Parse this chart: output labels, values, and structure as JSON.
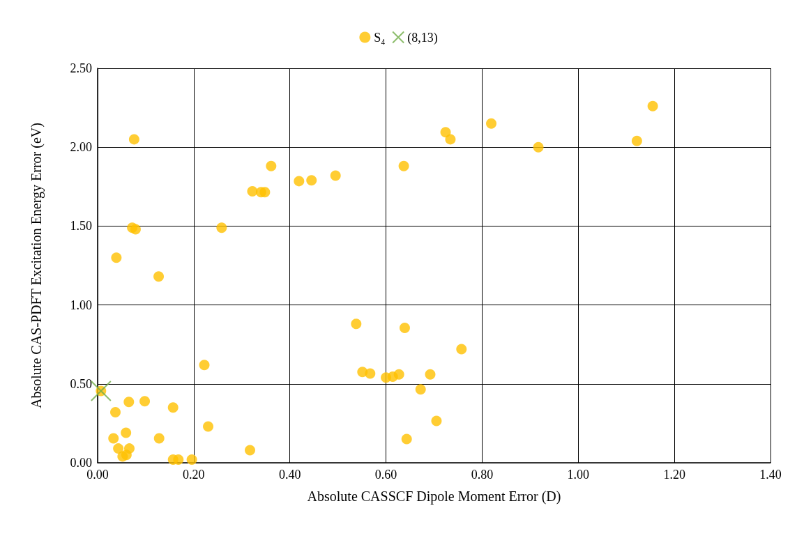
{
  "chart_data": {
    "type": "scatter",
    "xlabel": "Absolute CASSCF Dipole Moment Error (D)",
    "ylabel": "Absolute CAS-PDFT Excitation Energy Error (eV)",
    "xlim": [
      0,
      1.4
    ],
    "xticks": [
      {
        "value": 0,
        "label": "0.00"
      },
      {
        "value": 0.2,
        "label": "0.20"
      },
      {
        "value": 0.4,
        "label": "0.40"
      },
      {
        "value": 0.6,
        "label": "0.60"
      },
      {
        "value": 0.8,
        "label": "0.80"
      },
      {
        "value": 1,
        "label": "1.00"
      },
      {
        "value": 1.2,
        "label": "1.20"
      },
      {
        "value": 1.4,
        "label": "1.40"
      }
    ],
    "ylim": [
      0,
      2.5
    ],
    "yticks": [
      {
        "value": 0,
        "label": "0.00"
      },
      {
        "value": 0.5,
        "label": "0.50"
      },
      {
        "value": 1,
        "label": "1.00"
      },
      {
        "value": 1.5,
        "label": "1.50"
      },
      {
        "value": 2,
        "label": "2.00"
      },
      {
        "value": 2.5,
        "label": "2.50"
      }
    ],
    "grid": true,
    "legend": "top",
    "series": [
      {
        "name": "S₄",
        "color": "#ffc000",
        "marker": "circle",
        "x": [
          0.007,
          0.037,
          0.033,
          0.043,
          0.052,
          0.06,
          0.059,
          0.066,
          0.065,
          0.098,
          0.128,
          0.157,
          0.157,
          0.168,
          0.196,
          0.222,
          0.23,
          0.317,
          0.039,
          0.076,
          0.072,
          0.079,
          0.127,
          0.258,
          0.322,
          0.34,
          0.348,
          0.361,
          0.419,
          0.445,
          0.495,
          0.538,
          0.551,
          0.567,
          0.6,
          0.614,
          0.627,
          0.672,
          0.692,
          0.639,
          0.643,
          0.705,
          0.757,
          0.637,
          0.724,
          0.734,
          0.819,
          0.917,
          1.122,
          1.155
        ],
        "values": [
          0.455,
          0.32,
          0.155,
          0.09,
          0.04,
          0.05,
          0.19,
          0.09,
          0.385,
          0.39,
          0.155,
          0.35,
          0.02,
          0.02,
          0.02,
          0.62,
          0.23,
          0.08,
          1.3,
          2.05,
          1.49,
          1.48,
          1.18,
          1.49,
          1.72,
          1.715,
          1.715,
          1.88,
          1.785,
          1.79,
          1.82,
          0.88,
          0.575,
          0.565,
          0.54,
          0.545,
          0.56,
          0.465,
          0.56,
          0.855,
          0.15,
          0.265,
          0.72,
          1.88,
          2.095,
          2.05,
          2.15,
          2.0,
          2.04,
          2.26
        ]
      },
      {
        "name": "(8,13)",
        "color": "#70ad47",
        "marker": "cross",
        "x": [
          0.007
        ],
        "values": [
          0.455
        ]
      }
    ]
  }
}
